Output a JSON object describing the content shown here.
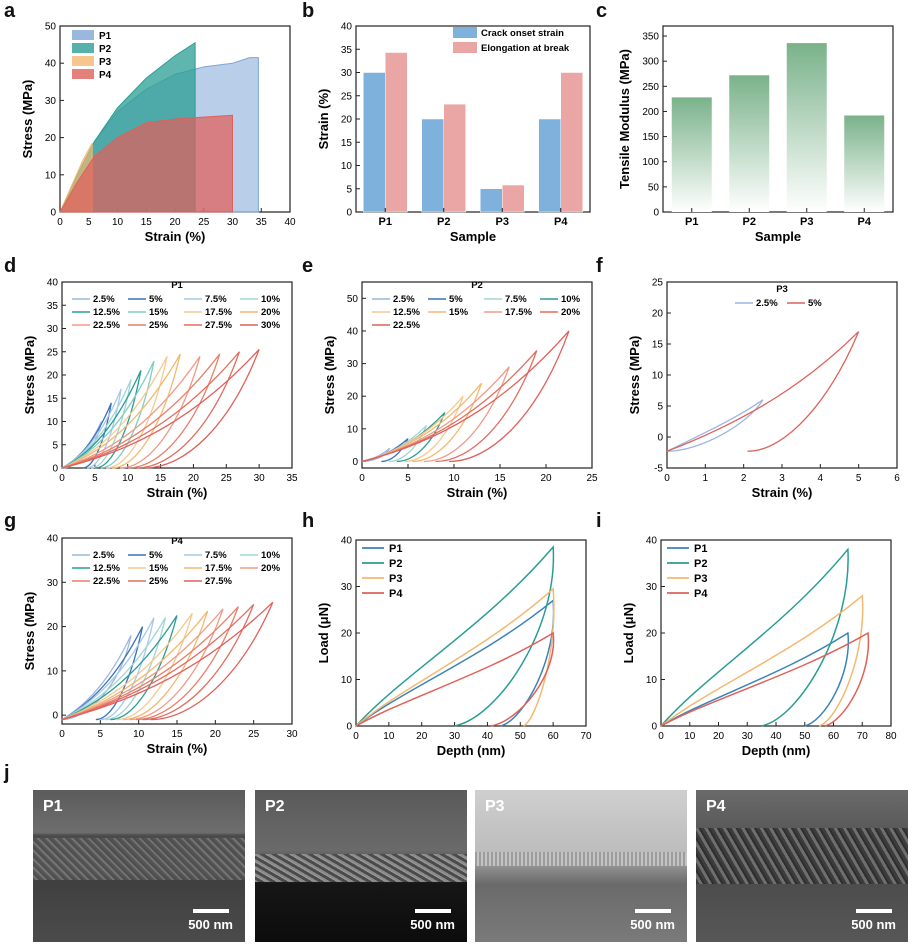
{
  "panel_labels": [
    "a",
    "b",
    "c",
    "d",
    "e",
    "f",
    "g",
    "h",
    "i",
    "j"
  ],
  "colors": {
    "P1": "#7fa6d6",
    "P2": "#2a9d93",
    "P3": "#f4b870",
    "P4": "#e0605a",
    "b1": "#7fb1dd",
    "b2": "#e9a6a4",
    "green": "#7ab28a"
  },
  "chart_data": [
    {
      "id": "a",
      "type": "area",
      "xlabel": "Strain (%)",
      "ylabel": "Stress (MPa)",
      "xlim": [
        0,
        40
      ],
      "ylim": [
        0,
        50
      ],
      "xticks": [
        0,
        5,
        10,
        15,
        20,
        25,
        30,
        35,
        40
      ],
      "yticks": [
        0,
        10,
        20,
        30,
        40,
        50
      ],
      "series": [
        {
          "name": "P1",
          "x": [
            0,
            3,
            6,
            10,
            15,
            20,
            25,
            30,
            33,
            34.5
          ],
          "y": [
            0,
            10,
            19,
            27,
            33,
            37,
            39,
            40,
            41.5,
            41.5
          ]
        },
        {
          "name": "P2",
          "x": [
            0,
            3,
            6,
            10,
            15,
            20,
            23.5
          ],
          "y": [
            0,
            10,
            19,
            28,
            36,
            42,
            45.5
          ]
        },
        {
          "name": "P3",
          "x": [
            0,
            2,
            4,
            5.6
          ],
          "y": [
            0,
            7,
            14,
            18.5
          ]
        },
        {
          "name": "P4",
          "x": [
            0,
            3,
            6,
            10,
            15,
            20,
            25,
            30
          ],
          "y": [
            0,
            8,
            15,
            20,
            24,
            25,
            25.5,
            26
          ]
        }
      ]
    },
    {
      "id": "b",
      "type": "bar",
      "xlabel": "Sample",
      "ylabel": "Strain (%)",
      "ylim": [
        0,
        40
      ],
      "yticks": [
        0,
        5,
        10,
        15,
        20,
        25,
        30,
        35,
        40
      ],
      "categories": [
        "P1",
        "P2",
        "P3",
        "P4"
      ],
      "series": [
        {
          "name": "Crack onset strain",
          "values": [
            30,
            20,
            5,
            20
          ]
        },
        {
          "name": "Elongation at break",
          "values": [
            34.3,
            23.2,
            5.8,
            30
          ]
        }
      ]
    },
    {
      "id": "c",
      "type": "bar",
      "xlabel": "Sample",
      "ylabel": "Tensile Modulus (MPa)",
      "ylim": [
        0,
        370
      ],
      "yticks": [
        0,
        50,
        100,
        150,
        200,
        250,
        300,
        350
      ],
      "categories": [
        "P1",
        "P2",
        "P3",
        "P4"
      ],
      "values": [
        228,
        272,
        336,
        192
      ]
    },
    {
      "id": "d",
      "type": "line",
      "title": "P1",
      "xlabel": "Strain (%)",
      "ylabel": "Stress (MPa)",
      "xlim": [
        0,
        35
      ],
      "ylim": [
        0,
        40
      ],
      "xticks": [
        0,
        5,
        10,
        15,
        20,
        25,
        30,
        35
      ],
      "yticks": [
        0,
        5,
        10,
        15,
        20,
        25,
        30,
        35,
        40
      ],
      "legend": [
        "2.5%",
        "5%",
        "7.5%",
        "10%",
        "12.5%",
        "15%",
        "17.5%",
        "20%",
        "22.5%",
        "25%",
        "27.5%",
        "30%"
      ],
      "cycles": [
        {
          "max": 6,
          "peak": 10
        },
        {
          "max": 7.5,
          "peak": 14
        },
        {
          "max": 9,
          "peak": 17
        },
        {
          "max": 10.5,
          "peak": 19
        },
        {
          "max": 12,
          "peak": 21
        },
        {
          "max": 14,
          "peak": 23
        },
        {
          "max": 16,
          "peak": 24
        },
        {
          "max": 18,
          "peak": 24.5
        },
        {
          "max": 21,
          "peak": 24
        },
        {
          "max": 24,
          "peak": 24.5
        },
        {
          "max": 27,
          "peak": 25
        },
        {
          "max": 30,
          "peak": 25.5
        }
      ]
    },
    {
      "id": "e",
      "type": "line",
      "title": "P2",
      "xlabel": "Strain (%)",
      "ylabel": "Stress (MPa)",
      "xlim": [
        0,
        25
      ],
      "ylim": [
        -2,
        55
      ],
      "xticks": [
        0,
        5,
        10,
        15,
        20,
        25
      ],
      "yticks": [
        0,
        10,
        20,
        30,
        40,
        50
      ],
      "legend": [
        "2.5%",
        "5%",
        "7.5%",
        "10%",
        "12.5%",
        "15%",
        "17.5%",
        "20%",
        "22.5%"
      ],
      "cycles": [
        {
          "max": 3,
          "peak": 4
        },
        {
          "max": 5,
          "peak": 7
        },
        {
          "max": 7,
          "peak": 11
        },
        {
          "max": 9,
          "peak": 15
        },
        {
          "max": 11,
          "peak": 20
        },
        {
          "max": 13,
          "peak": 24
        },
        {
          "max": 16,
          "peak": 29
        },
        {
          "max": 19,
          "peak": 34
        },
        {
          "max": 22.5,
          "peak": 40
        }
      ]
    },
    {
      "id": "f",
      "type": "line",
      "title": "P3",
      "xlabel": "Strain (%)",
      "ylabel": "Stress (MPa)",
      "xlim": [
        0,
        6
      ],
      "ylim": [
        -5,
        25
      ],
      "xticks": [
        0,
        1,
        2,
        3,
        4,
        5,
        6
      ],
      "yticks": [
        -5,
        0,
        5,
        10,
        15,
        20,
        25
      ],
      "legend": [
        "2.5%",
        "5%"
      ],
      "cycles": [
        {
          "max": 2.5,
          "peak": 6
        },
        {
          "max": 5,
          "peak": 17
        }
      ]
    },
    {
      "id": "g",
      "type": "line",
      "title": "P4",
      "xlabel": "Strain (%)",
      "ylabel": "Stress (MPa)",
      "xlim": [
        0,
        30
      ],
      "ylim": [
        -2,
        40
      ],
      "xticks": [
        0,
        5,
        10,
        15,
        20,
        25,
        30
      ],
      "yticks": [
        0,
        10,
        20,
        30,
        40
      ],
      "legend": [
        "2.5%",
        "5%",
        "7.5%",
        "10%",
        "12.5%",
        "15%",
        "17.5%",
        "20%",
        "22.5%",
        "25%",
        "27.5%"
      ],
      "cycles": [
        {
          "max": 9,
          "peak": 18
        },
        {
          "max": 10.5,
          "peak": 20
        },
        {
          "max": 12,
          "peak": 22
        },
        {
          "max": 13.5,
          "peak": 22
        },
        {
          "max": 15,
          "peak": 22.5
        },
        {
          "max": 17,
          "peak": 23
        },
        {
          "max": 19,
          "peak": 23.5
        },
        {
          "max": 21,
          "peak": 24
        },
        {
          "max": 23,
          "peak": 24.5
        },
        {
          "max": 25,
          "peak": 25
        },
        {
          "max": 27.5,
          "peak": 25.5
        }
      ]
    },
    {
      "id": "h",
      "type": "line",
      "xlabel": "Depth (nm)",
      "ylabel": "Load (μN)",
      "xlim": [
        0,
        70
      ],
      "ylim": [
        0,
        40
      ],
      "xticks": [
        0,
        10,
        20,
        30,
        40,
        50,
        60,
        70
      ],
      "yticks": [
        0,
        10,
        20,
        30,
        40
      ],
      "series": [
        {
          "name": "P1",
          "peak_x": 60,
          "peak_y": 27,
          "end_x": 44
        },
        {
          "name": "P2",
          "peak_x": 60,
          "peak_y": 38.5,
          "end_x": 30
        },
        {
          "name": "P3",
          "peak_x": 60,
          "peak_y": 29.5,
          "end_x": 51
        },
        {
          "name": "P4",
          "peak_x": 60,
          "peak_y": 20,
          "end_x": 41
        }
      ]
    },
    {
      "id": "i",
      "type": "line",
      "xlabel": "Depth (nm)",
      "ylabel": "Load (μN)",
      "xlim": [
        0,
        80
      ],
      "ylim": [
        0,
        40
      ],
      "xticks": [
        0,
        10,
        20,
        30,
        40,
        50,
        60,
        70,
        80
      ],
      "yticks": [
        0,
        10,
        20,
        30,
        40
      ],
      "series": [
        {
          "name": "P1",
          "peak_x": 65,
          "peak_y": 20,
          "end_x": 50
        },
        {
          "name": "P2",
          "peak_x": 65,
          "peak_y": 38,
          "end_x": 35
        },
        {
          "name": "P3",
          "peak_x": 70,
          "peak_y": 28,
          "end_x": 55
        },
        {
          "name": "P4",
          "peak_x": 72,
          "peak_y": 20,
          "end_x": 57
        }
      ]
    }
  ],
  "sem": [
    {
      "label": "P1",
      "scale": "500 nm"
    },
    {
      "label": "P2",
      "scale": "500 nm"
    },
    {
      "label": "P3",
      "scale": "500 nm"
    },
    {
      "label": "P4",
      "scale": "500 nm"
    }
  ]
}
